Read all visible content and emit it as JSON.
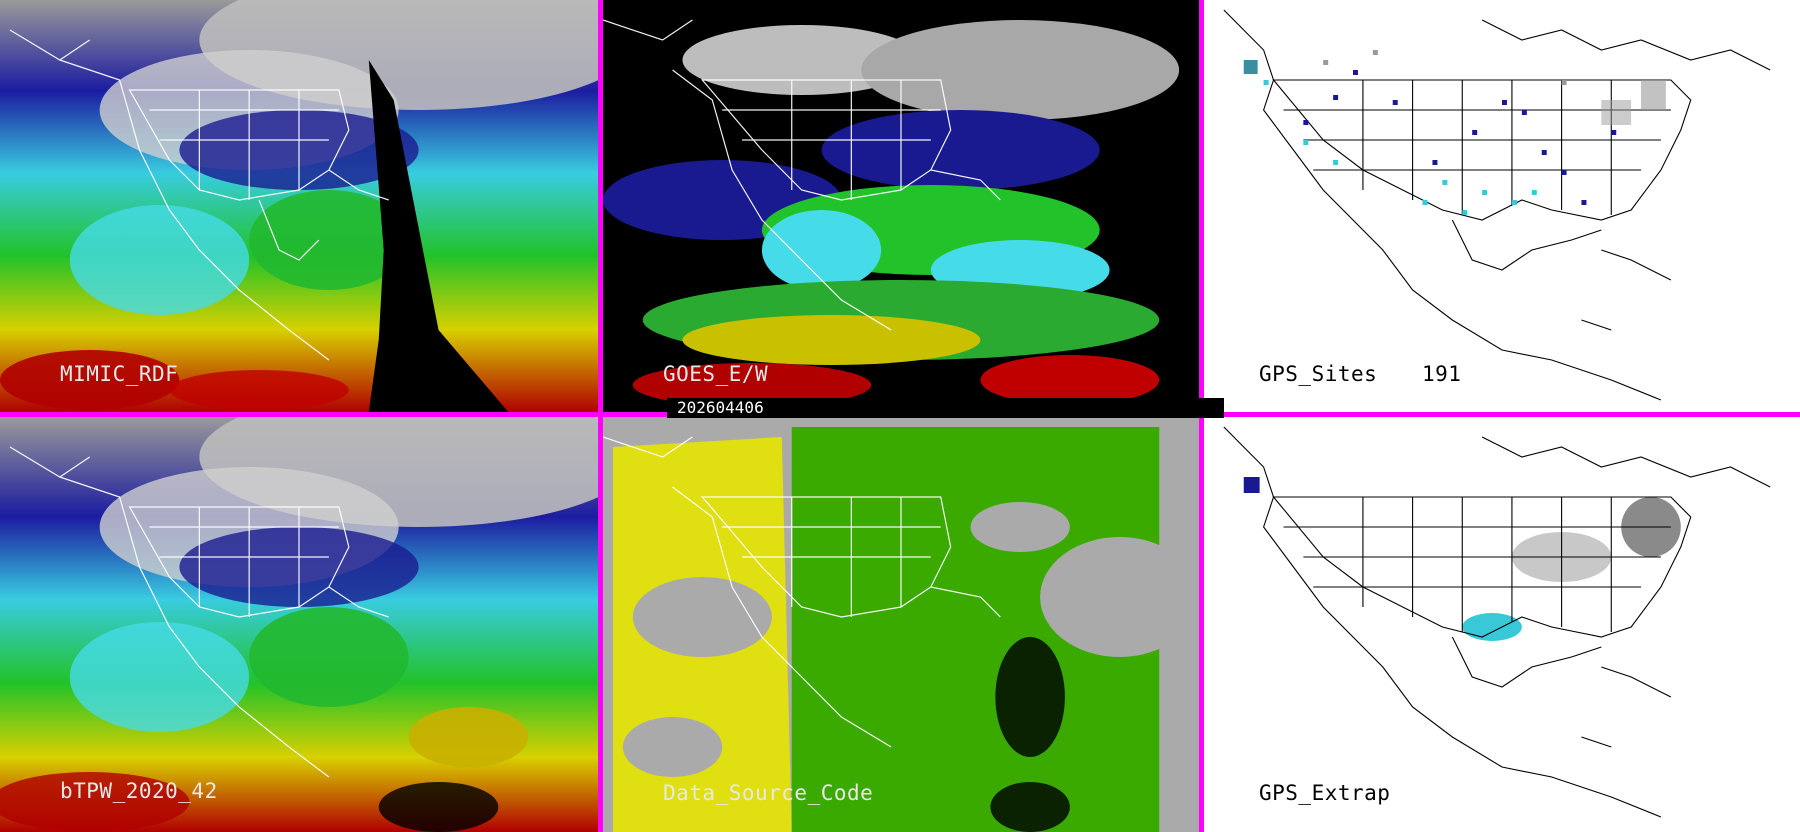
{
  "panels": {
    "mimic": {
      "label": "MIMIC_RDF"
    },
    "goes": {
      "label": "GOES_E/W"
    },
    "gps_sites": {
      "label": "GPS_Sites",
      "count": "191"
    },
    "btpw": {
      "label": "bTPW_2020_42"
    },
    "source": {
      "label": "Data_Source_Code"
    },
    "gps_extrap": {
      "label": "GPS_Extrap"
    }
  },
  "timestamp": "202604406",
  "colors": {
    "divider": "#ff00ff",
    "dry": "#1a1a90",
    "moist": "#3ad0e0",
    "mid": "#2ec82e",
    "wet": "#e6d800",
    "very_wet": "#c00000",
    "land_gray": "#c8c8c8",
    "source_yellow": "#e4e400",
    "source_green": "#3aaa00",
    "source_gray": "#aaaaaa"
  }
}
